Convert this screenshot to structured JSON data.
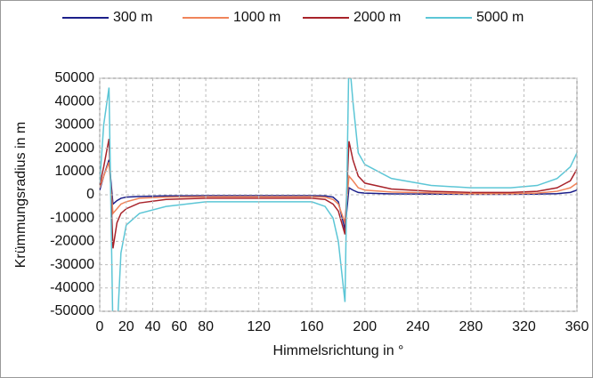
{
  "chart_data": {
    "type": "line",
    "x_label": "Himmelsrichtung in °",
    "y_label": "Krümmungsradius in m",
    "x": [
      0,
      3,
      7,
      10,
      13,
      16,
      20,
      30,
      50,
      80,
      120,
      160,
      170,
      176,
      180,
      185,
      188,
      191,
      195,
      200,
      220,
      250,
      280,
      310,
      330,
      345,
      355,
      360
    ],
    "series": [
      {
        "name": "300 m",
        "color": "#1c1f8a",
        "values": [
          2000,
          8000,
          15000,
          -4000,
          -2500,
          -1500,
          -1000,
          -700,
          -500,
          -400,
          -400,
          -400,
          -500,
          -1000,
          -3000,
          -15000,
          3000,
          2000,
          1000,
          700,
          400,
          300,
          200,
          200,
          300,
          500,
          1000,
          2000
        ]
      },
      {
        "name": "1000 m",
        "color": "#f0845a",
        "values": [
          3000,
          8000,
          14000,
          -8000,
          -6000,
          -4000,
          -3000,
          -1500,
          -1000,
          -800,
          -800,
          -800,
          -1000,
          -2000,
          -4000,
          -12000,
          8000,
          6000,
          3000,
          2000,
          1200,
          800,
          500,
          500,
          700,
          1500,
          3000,
          5000
        ]
      },
      {
        "name": "2000 m",
        "color": "#a8232a",
        "values": [
          4000,
          12000,
          24000,
          -23000,
          -12000,
          -8000,
          -6000,
          -3500,
          -2000,
          -1500,
          -1500,
          -1500,
          -2000,
          -4000,
          -7000,
          -17000,
          23000,
          15000,
          8000,
          5000,
          2500,
          1500,
          1000,
          1000,
          1500,
          3000,
          6000,
          11000
        ]
      },
      {
        "name": "5000 m",
        "color": "#5cc6d6",
        "values": [
          5000,
          30000,
          46000,
          -60000,
          -60000,
          -25000,
          -13000,
          -8000,
          -5000,
          -3000,
          -3000,
          -3000,
          -5000,
          -10000,
          -20000,
          -46000,
          60000,
          40000,
          18000,
          13000,
          7000,
          4000,
          3000,
          3000,
          4000,
          7000,
          12000,
          18000
        ]
      }
    ],
    "xlim": [
      0,
      360
    ],
    "xticks": [
      0,
      20,
      40,
      60,
      80,
      120,
      160,
      200,
      240,
      280,
      320,
      360
    ],
    "ylim": [
      -50000,
      50000
    ],
    "yticks": [
      -50000,
      -40000,
      -30000,
      -20000,
      -10000,
      0,
      10000,
      20000,
      30000,
      40000,
      50000
    ],
    "grid": true,
    "legend": "top"
  }
}
